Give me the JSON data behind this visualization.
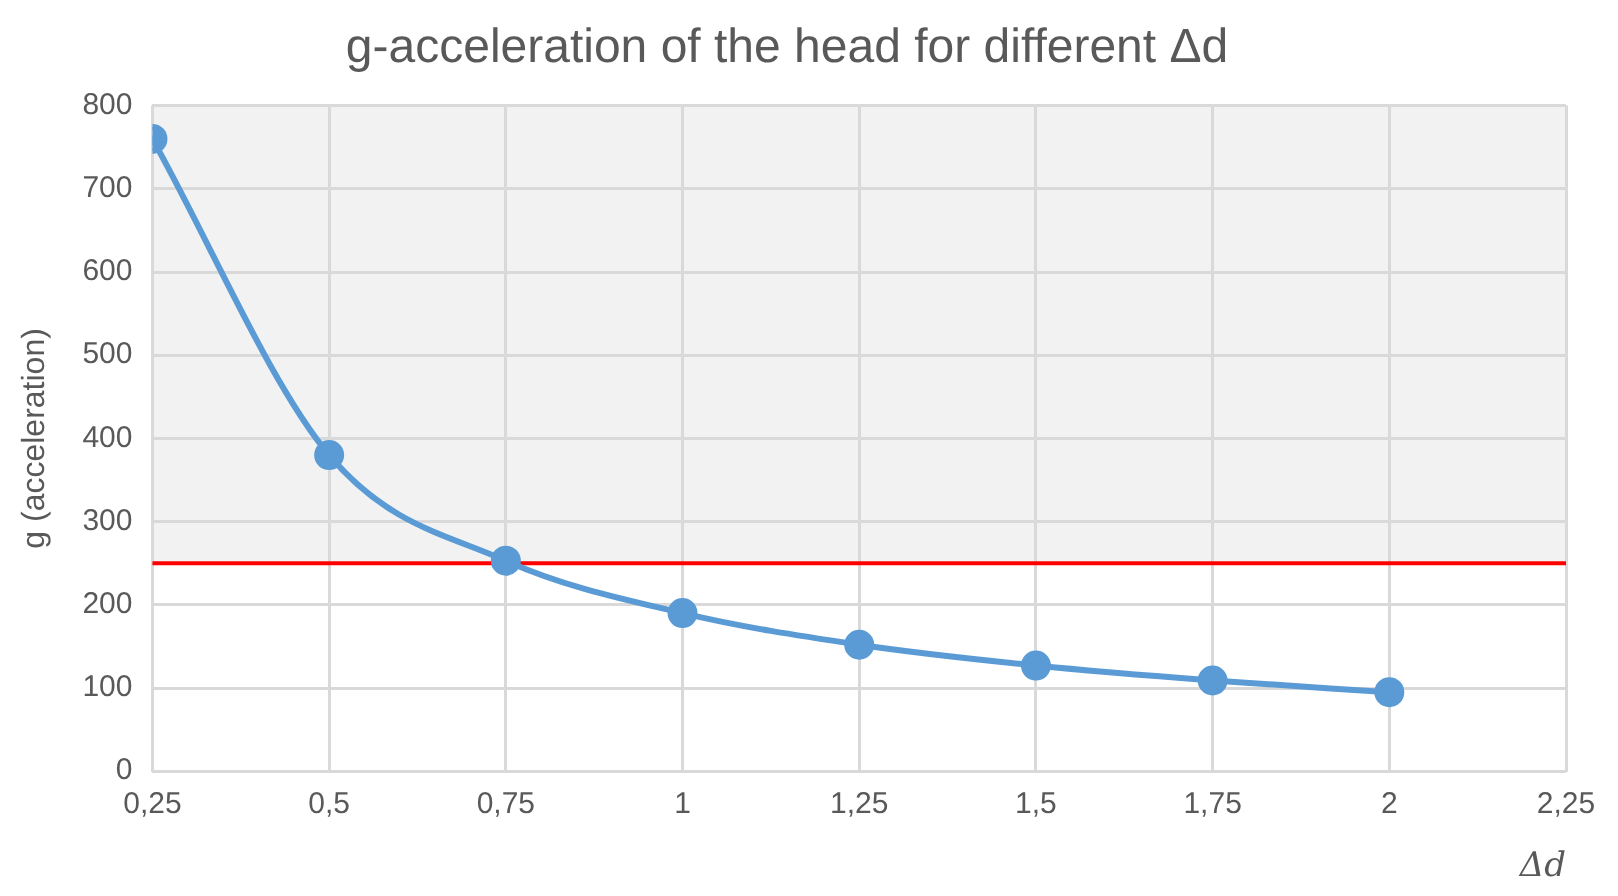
{
  "chart_data": {
    "type": "line",
    "title": "g-acceleration of the head for different Δd",
    "xlabel": "Δd",
    "ylabel": "g (acceleration)",
    "x": [
      0.25,
      0.5,
      0.75,
      1,
      1.25,
      1.5,
      1.75,
      2
    ],
    "series": [
      {
        "color": "#5b9bd5",
        "values": [
          760,
          380,
          253,
          190,
          152,
          127,
          109,
          95
        ]
      }
    ],
    "xlim": [
      0.25,
      2.25
    ],
    "xticks": [
      {
        "value": 0.25,
        "label": "0,25"
      },
      {
        "value": 0.5,
        "label": "0,5"
      },
      {
        "value": 0.75,
        "label": "0,75"
      },
      1,
      {
        "value": 1.25,
        "label": "1,25"
      },
      {
        "value": 1.5,
        "label": "1,5"
      },
      {
        "value": 1.75,
        "label": "1,75"
      },
      2,
      {
        "value": 2.25,
        "label": "2,25"
      }
    ],
    "ylim": [
      0,
      800
    ],
    "yticks": [
      0,
      100,
      200,
      300,
      400,
      500,
      600,
      700,
      800
    ],
    "bands": [
      {
        "axis": "y",
        "from": 250,
        "to": 800,
        "color": "#f2f2f2"
      }
    ],
    "ref_lines": [
      {
        "axis": "y",
        "value": 250,
        "color": "#ff0000"
      }
    ],
    "grid": true,
    "legend": false,
    "marker": "circle",
    "line_style": "solid"
  }
}
